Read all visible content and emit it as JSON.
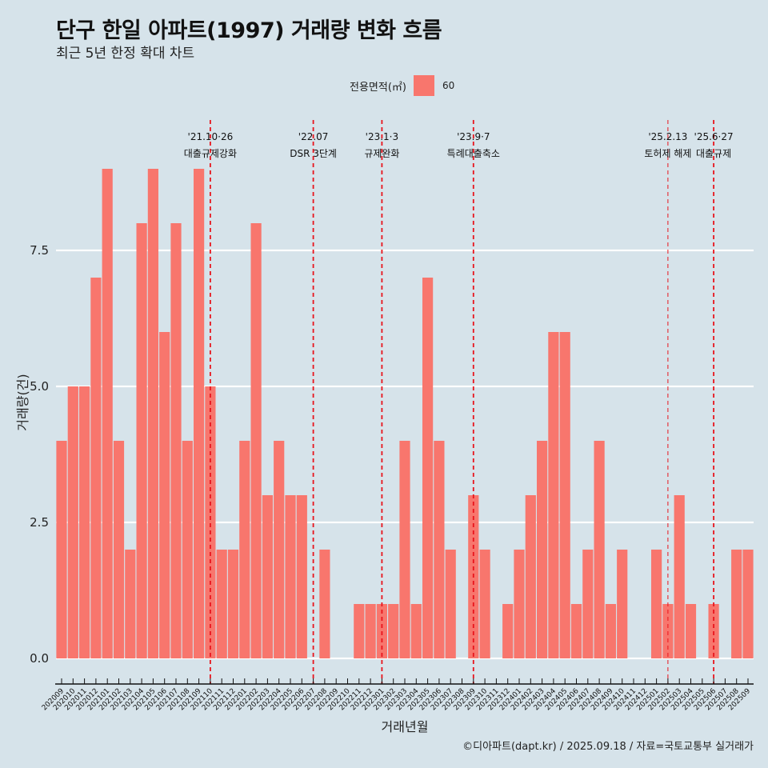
{
  "header": {
    "title": "단구 한일 아파트(1997) 거래량 변화 흐름",
    "subtitle": "최근 5년 한정 확대 차트"
  },
  "legend": {
    "title": "전용면적(㎡)",
    "items": [
      {
        "label": "60",
        "color": "#f8766d"
      }
    ]
  },
  "caption": "©디아파트(dapt.kr) / 2025.09.18 / 자료=국토교통부 실거래가",
  "colors": {
    "background": "#d6e3ea",
    "bar": "#f8766d",
    "event_line": "#e8141c",
    "grid": "#ffffff"
  },
  "chart_data": {
    "type": "bar",
    "title": "단구 한일 아파트(1997) 거래량 변화 흐름",
    "subtitle": "최근 5년 한정 확대 차트",
    "xlabel": "거래년월",
    "ylabel": "거래량(건)",
    "ylim": [
      0,
      9
    ],
    "yticks": [
      "0.0",
      "2.5",
      "5.0",
      "7.5"
    ],
    "ytick_values": [
      0,
      2.5,
      5,
      7.5
    ],
    "grid": true,
    "legend_position": "top",
    "categories": [
      "202009",
      "202010",
      "202011",
      "202012",
      "202101",
      "202102",
      "202103",
      "202104",
      "202105",
      "202106",
      "202107",
      "202108",
      "202109",
      "202110",
      "202111",
      "202112",
      "202201",
      "202202",
      "202203",
      "202204",
      "202205",
      "202206",
      "202207",
      "202208",
      "202209",
      "202210",
      "202211",
      "202212",
      "202301",
      "202302",
      "202303",
      "202304",
      "202305",
      "202306",
      "202307",
      "202308",
      "202309",
      "202310",
      "202311",
      "202312",
      "202401",
      "202402",
      "202403",
      "202404",
      "202405",
      "202406",
      "202407",
      "202408",
      "202409",
      "202410",
      "202411",
      "202412",
      "202501",
      "202502",
      "202503",
      "202504",
      "202505",
      "202506",
      "202507",
      "202508",
      "202509"
    ],
    "series": [
      {
        "name": "60",
        "values": [
          4,
          5,
          5,
          7,
          9,
          4,
          2,
          8,
          9,
          6,
          8,
          4,
          9,
          5,
          2,
          2,
          4,
          8,
          3,
          4,
          3,
          3,
          0,
          2,
          0,
          0,
          1,
          1,
          1,
          1,
          4,
          1,
          7,
          4,
          2,
          0,
          3,
          2,
          0,
          1,
          2,
          3,
          4,
          6,
          6,
          1,
          2,
          4,
          1,
          2,
          0,
          0,
          2,
          1,
          3,
          1,
          0,
          1,
          0,
          2,
          2
        ]
      }
    ],
    "annotations": [
      {
        "month": "202110",
        "date": "'21.10·26",
        "text": "대출규제강화",
        "style": "dashed"
      },
      {
        "month": "202207",
        "date": "'22.07",
        "text": "DSR 3단계",
        "style": "dashed"
      },
      {
        "month": "202301",
        "date": "'23.1·3",
        "text": "규제완화",
        "style": "dashed"
      },
      {
        "month": "202309",
        "date": "'23.9·7",
        "text": "특례대출축소",
        "style": "dashed"
      },
      {
        "month": "202502",
        "date": "'25.2.13",
        "text": "토허제 해제",
        "style": "thin-dashed"
      },
      {
        "month": "202506",
        "date": "'25.6·27",
        "text": "대출규제",
        "style": "dashed"
      }
    ]
  }
}
